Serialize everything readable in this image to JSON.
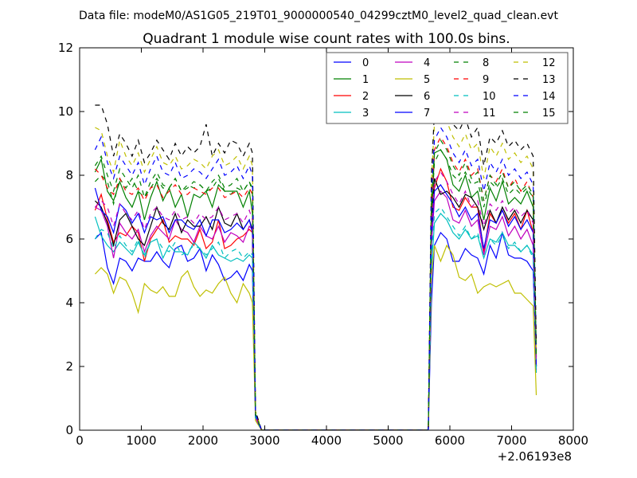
{
  "chart_data": {
    "type": "line",
    "suptitle": "Data file: modeM0/AS1G05_219T01_9000000540_04299cztM0_level2_quad_clean.evt",
    "title": "Quadrant 1 module wise count rates with 100.0s bins.",
    "xlabel": "",
    "ylabel": "",
    "x_offset_label": "+2.06193e8",
    "xlim": [
      0,
      8000
    ],
    "ylim": [
      0,
      12
    ],
    "xticks": [
      0,
      1000,
      2000,
      3000,
      4000,
      5000,
      6000,
      7000,
      8000
    ],
    "yticks": [
      0,
      2,
      4,
      6,
      8,
      10,
      12
    ],
    "grid": false,
    "legend_position": "top-right",
    "x": [
      250,
      350,
      450,
      550,
      650,
      750,
      850,
      950,
      1050,
      1150,
      1250,
      1350,
      1450,
      1550,
      1650,
      1750,
      1850,
      1950,
      2050,
      2150,
      2250,
      2350,
      2450,
      2550,
      2650,
      2750,
      2800,
      2850,
      2950,
      3000,
      3100,
      3500,
      4000,
      4500,
      5000,
      5500,
      5650,
      5700,
      5750,
      5850,
      5950,
      6050,
      6150,
      6250,
      6350,
      6450,
      6550,
      6650,
      6750,
      6850,
      6950,
      7050,
      7150,
      7250,
      7350,
      7400
    ],
    "series": [
      {
        "name": "0",
        "color": "#0000ff",
        "dash": "solid",
        "values": [
          6.0,
          6.2,
          5.1,
          4.6,
          5.4,
          5.3,
          5.0,
          5.4,
          5.3,
          5.3,
          5.6,
          5.3,
          5.1,
          5.7,
          5.8,
          5.3,
          5.4,
          5.7,
          5.0,
          5.5,
          5.2,
          4.7,
          4.8,
          5.0,
          4.7,
          5.2,
          5.0,
          0.4,
          0.0,
          0.0,
          0.0,
          0.0,
          0.0,
          0.0,
          0.0,
          0.0,
          0.0,
          4.0,
          5.8,
          6.2,
          6.0,
          5.3,
          5.3,
          5.7,
          5.5,
          5.4,
          4.9,
          5.8,
          5.4,
          6.2,
          5.5,
          5.4,
          5.4,
          5.3,
          5.0,
          2.0
        ]
      },
      {
        "name": "1",
        "color": "#008000",
        "dash": "solid",
        "values": [
          8.1,
          8.5,
          7.5,
          7.2,
          7.8,
          7.3,
          7.0,
          7.5,
          6.6,
          7.3,
          7.8,
          7.2,
          7.6,
          7.0,
          7.4,
          6.7,
          7.4,
          7.3,
          7.5,
          7.0,
          7.7,
          7.5,
          7.5,
          7.5,
          7.0,
          7.5,
          6.8,
          0.5,
          0.0,
          0.0,
          0.0,
          0.0,
          0.0,
          0.0,
          0.0,
          0.0,
          0.0,
          6.5,
          8.7,
          8.8,
          8.5,
          7.7,
          7.5,
          8.0,
          7.3,
          7.5,
          6.6,
          7.6,
          7.2,
          7.8,
          7.1,
          7.3,
          7.1,
          7.5,
          7.0,
          2.2
        ]
      },
      {
        "name": "2",
        "color": "#ff0000",
        "dash": "solid",
        "values": [
          6.9,
          7.4,
          6.6,
          5.9,
          6.2,
          6.1,
          6.4,
          6.2,
          5.3,
          6.0,
          6.3,
          6.6,
          5.9,
          6.1,
          6.0,
          6.0,
          5.8,
          6.3,
          5.7,
          5.9,
          6.6,
          5.7,
          5.8,
          6.0,
          6.1,
          6.3,
          6.2,
          0.4,
          0.0,
          0.0,
          0.0,
          0.0,
          0.0,
          0.0,
          0.0,
          0.0,
          0.0,
          6.0,
          7.6,
          8.2,
          7.8,
          7.0,
          6.9,
          7.3,
          7.0,
          7.0,
          5.6,
          6.8,
          6.5,
          6.9,
          6.5,
          6.8,
          6.3,
          6.9,
          6.2,
          2.0
        ]
      },
      {
        "name": "3",
        "color": "#00bfbf",
        "dash": "solid",
        "values": [
          6.7,
          6.1,
          5.8,
          5.6,
          5.9,
          5.7,
          5.5,
          5.9,
          5.5,
          5.9,
          6.0,
          5.4,
          5.8,
          5.6,
          5.6,
          5.5,
          5.9,
          5.7,
          5.4,
          5.8,
          5.5,
          5.4,
          5.3,
          5.4,
          5.3,
          5.5,
          5.4,
          0.4,
          0.0,
          0.0,
          0.0,
          0.0,
          0.0,
          0.0,
          0.0,
          0.0,
          0.0,
          5.0,
          6.5,
          6.8,
          6.6,
          6.2,
          6.0,
          6.3,
          6.0,
          6.1,
          5.4,
          6.0,
          5.9,
          6.2,
          5.8,
          5.8,
          5.6,
          5.8,
          5.5,
          1.8
        ]
      },
      {
        "name": "4",
        "color": "#bf00bf",
        "dash": "solid",
        "values": [
          7.0,
          6.9,
          6.4,
          5.4,
          6.5,
          6.2,
          6.0,
          6.3,
          5.6,
          6.1,
          6.4,
          6.2,
          6.0,
          6.6,
          6.3,
          6.2,
          5.9,
          6.4,
          6.1,
          6.0,
          6.4,
          5.9,
          6.2,
          6.1,
          5.9,
          6.4,
          6.3,
          0.4,
          0.0,
          0.0,
          0.0,
          0.0,
          0.0,
          0.0,
          0.0,
          0.0,
          0.0,
          5.8,
          7.2,
          7.5,
          7.3,
          6.6,
          6.5,
          6.9,
          6.4,
          6.6,
          5.5,
          6.4,
          6.3,
          6.7,
          6.1,
          6.4,
          6.0,
          6.3,
          5.8,
          1.9
        ]
      },
      {
        "name": "5",
        "color": "#bfbf00",
        "dash": "solid",
        "values": [
          4.9,
          5.1,
          4.9,
          4.3,
          4.8,
          4.7,
          4.3,
          3.7,
          4.6,
          4.4,
          4.3,
          4.5,
          4.2,
          4.2,
          4.8,
          5.0,
          4.5,
          4.2,
          4.4,
          4.3,
          4.6,
          4.8,
          4.3,
          4.0,
          4.6,
          4.3,
          4.0,
          0.3,
          0.0,
          0.0,
          0.0,
          0.0,
          0.0,
          0.0,
          0.0,
          0.0,
          0.0,
          4.8,
          5.8,
          5.3,
          5.8,
          5.5,
          4.8,
          4.7,
          4.9,
          4.3,
          4.5,
          4.6,
          4.5,
          4.6,
          4.7,
          4.3,
          4.3,
          4.1,
          3.9,
          1.1
        ]
      },
      {
        "name": "6",
        "color": "#000000",
        "dash": "solid",
        "values": [
          7.2,
          7.0,
          6.5,
          5.8,
          6.6,
          6.8,
          6.4,
          6.0,
          5.8,
          6.4,
          7.0,
          6.5,
          6.3,
          6.8,
          6.2,
          6.6,
          6.4,
          6.4,
          6.7,
          6.3,
          7.0,
          6.5,
          6.4,
          6.8,
          6.3,
          6.6,
          6.3,
          0.4,
          0.0,
          0.0,
          0.0,
          0.0,
          0.0,
          0.0,
          0.0,
          0.0,
          0.0,
          6.2,
          7.9,
          7.4,
          7.5,
          7.3,
          7.0,
          7.4,
          7.3,
          7.0,
          6.3,
          6.9,
          6.5,
          7.0,
          6.6,
          6.9,
          6.5,
          6.9,
          6.6,
          2.0
        ]
      },
      {
        "name": "7",
        "color": "#0000ff",
        "dash": "solid",
        "values": [
          7.6,
          6.9,
          6.7,
          6.2,
          7.1,
          6.9,
          6.5,
          6.8,
          6.2,
          6.7,
          6.6,
          6.7,
          6.2,
          6.6,
          6.6,
          6.4,
          6.3,
          6.6,
          6.1,
          6.6,
          6.6,
          6.2,
          6.3,
          6.5,
          6.3,
          6.6,
          6.2,
          0.4,
          0.0,
          0.0,
          0.0,
          0.0,
          0.0,
          0.0,
          0.0,
          0.0,
          0.0,
          6.1,
          7.5,
          7.7,
          7.4,
          7.1,
          6.7,
          7.0,
          6.6,
          6.8,
          5.7,
          6.6,
          6.5,
          6.9,
          6.4,
          6.7,
          6.3,
          6.6,
          6.2,
          2.0
        ]
      },
      {
        "name": "8",
        "color": "#008000",
        "dash": "dashed",
        "values": [
          7.8,
          8.0,
          7.8,
          7.1,
          7.9,
          7.6,
          7.9,
          7.5,
          7.3,
          7.6,
          7.9,
          7.6,
          7.6,
          7.9,
          7.5,
          7.7,
          7.6,
          7.7,
          7.5,
          7.6,
          7.9,
          7.5,
          7.4,
          7.6,
          7.5,
          7.8,
          7.5,
          0.5,
          0.0,
          0.0,
          0.0,
          0.0,
          0.0,
          0.0,
          0.0,
          0.0,
          0.0,
          6.8,
          8.4,
          8.8,
          8.5,
          8.0,
          7.8,
          8.1,
          7.7,
          7.8,
          7.0,
          7.8,
          7.6,
          7.9,
          7.4,
          7.6,
          7.4,
          7.6,
          7.3,
          2.3
        ]
      },
      {
        "name": "9",
        "color": "#ff0000",
        "dash": "dashed",
        "values": [
          8.2,
          8.0,
          7.6,
          7.4,
          7.9,
          7.5,
          7.4,
          7.6,
          7.2,
          7.6,
          7.7,
          7.3,
          7.5,
          7.7,
          7.4,
          7.4,
          7.6,
          7.5,
          7.4,
          7.6,
          7.6,
          7.3,
          7.4,
          7.5,
          7.3,
          7.6,
          7.4,
          0.5,
          0.0,
          0.0,
          0.0,
          0.0,
          0.0,
          0.0,
          0.0,
          0.0,
          0.0,
          7.0,
          8.8,
          9.2,
          8.9,
          8.4,
          8.1,
          8.5,
          8.0,
          8.2,
          7.2,
          8.0,
          7.8,
          8.2,
          7.6,
          7.9,
          7.5,
          7.8,
          7.3,
          2.4
        ]
      },
      {
        "name": "10",
        "color": "#00bfbf",
        "dash": "dashed",
        "values": [
          6.0,
          6.3,
          6.2,
          5.7,
          6.1,
          5.8,
          5.6,
          6.0,
          5.4,
          5.9,
          6.0,
          5.7,
          5.6,
          5.9,
          5.5,
          5.6,
          5.8,
          5.7,
          5.5,
          5.7,
          5.9,
          5.4,
          5.6,
          5.7,
          5.4,
          5.6,
          5.5,
          0.4,
          0.0,
          0.0,
          0.0,
          0.0,
          0.0,
          0.0,
          0.0,
          0.0,
          0.0,
          5.4,
          6.8,
          7.0,
          6.7,
          6.4,
          6.1,
          6.4,
          6.0,
          6.2,
          5.4,
          6.0,
          5.8,
          6.1,
          5.7,
          5.9,
          5.6,
          5.8,
          5.4,
          1.8
        ]
      },
      {
        "name": "11",
        "color": "#bf00bf",
        "dash": "dashed",
        "values": [
          7.0,
          7.2,
          7.0,
          6.4,
          7.1,
          6.8,
          6.6,
          6.9,
          6.3,
          6.8,
          7.0,
          6.7,
          6.6,
          6.9,
          6.6,
          6.7,
          6.5,
          6.8,
          6.6,
          6.7,
          7.0,
          6.6,
          6.7,
          6.8,
          6.5,
          6.9,
          6.6,
          0.4,
          0.0,
          0.0,
          0.0,
          0.0,
          0.0,
          0.0,
          0.0,
          0.0,
          0.0,
          6.2,
          7.8,
          8.1,
          7.8,
          7.4,
          7.1,
          7.5,
          7.0,
          7.2,
          6.4,
          7.1,
          6.9,
          7.2,
          6.8,
          7.0,
          6.7,
          6.9,
          6.5,
          2.1
        ]
      },
      {
        "name": "12",
        "color": "#bfbf00",
        "dash": "dashed",
        "values": [
          9.5,
          9.4,
          8.6,
          8.1,
          9.1,
          8.6,
          8.3,
          8.7,
          8.1,
          8.5,
          8.9,
          8.4,
          8.3,
          8.6,
          8.2,
          8.3,
          8.5,
          8.4,
          8.2,
          8.6,
          8.8,
          8.3,
          8.4,
          8.6,
          8.2,
          8.6,
          8.3,
          0.6,
          0.0,
          0.0,
          0.0,
          0.0,
          0.0,
          0.0,
          0.0,
          0.0,
          0.0,
          7.8,
          9.6,
          10.0,
          9.7,
          9.2,
          8.9,
          9.3,
          8.8,
          9.0,
          7.9,
          8.9,
          8.6,
          9.0,
          8.5,
          8.7,
          8.4,
          8.6,
          8.2,
          2.6
        ]
      },
      {
        "name": "13",
        "color": "#000000",
        "dash": "dashed",
        "values": [
          10.2,
          10.2,
          9.6,
          8.6,
          9.3,
          9.0,
          8.6,
          9.1,
          8.4,
          8.7,
          9.1,
          8.8,
          8.5,
          9.0,
          8.6,
          8.9,
          8.7,
          8.9,
          9.6,
          8.6,
          9.0,
          8.7,
          9.1,
          9.0,
          8.6,
          9.0,
          8.7,
          0.6,
          0.0,
          0.0,
          0.0,
          0.0,
          0.0,
          0.0,
          0.0,
          0.0,
          0.0,
          8.0,
          10.0,
          10.4,
          10.1,
          9.6,
          9.4,
          9.8,
          9.2,
          9.5,
          8.3,
          9.2,
          9.0,
          9.4,
          8.9,
          9.1,
          8.8,
          9.0,
          8.6,
          2.7
        ]
      },
      {
        "name": "14",
        "color": "#0000ff",
        "dash": "dashed",
        "values": [
          8.8,
          9.2,
          8.4,
          7.9,
          8.6,
          8.3,
          8.0,
          8.4,
          7.7,
          8.2,
          8.6,
          8.1,
          8.0,
          8.4,
          7.9,
          8.0,
          8.2,
          8.1,
          7.9,
          8.2,
          8.5,
          8.0,
          8.1,
          8.3,
          7.9,
          8.3,
          8.0,
          0.5,
          0.0,
          0.0,
          0.0,
          0.0,
          0.0,
          0.0,
          0.0,
          0.0,
          0.0,
          7.4,
          9.1,
          9.5,
          9.2,
          8.7,
          8.4,
          8.8,
          8.3,
          8.5,
          7.5,
          8.4,
          8.1,
          8.5,
          8.0,
          8.2,
          7.9,
          8.1,
          7.7,
          2.5
        ]
      },
      {
        "name": "15",
        "color": "#008000",
        "dash": "dashed",
        "values": [
          8.3,
          8.6,
          8.0,
          7.5,
          8.2,
          7.9,
          7.6,
          8.0,
          7.3,
          7.8,
          8.1,
          7.7,
          7.6,
          7.9,
          7.5,
          7.6,
          7.8,
          7.7,
          7.5,
          7.8,
          8.0,
          7.6,
          7.7,
          7.9,
          7.5,
          7.8,
          7.6,
          0.5,
          0.0,
          0.0,
          0.0,
          0.0,
          0.0,
          0.0,
          0.0,
          0.0,
          0.0,
          7.1,
          8.7,
          9.1,
          8.8,
          8.3,
          8.0,
          8.4,
          7.9,
          8.1,
          7.2,
          8.0,
          7.7,
          8.1,
          7.6,
          7.8,
          7.5,
          7.7,
          7.4,
          2.4
        ]
      }
    ]
  }
}
